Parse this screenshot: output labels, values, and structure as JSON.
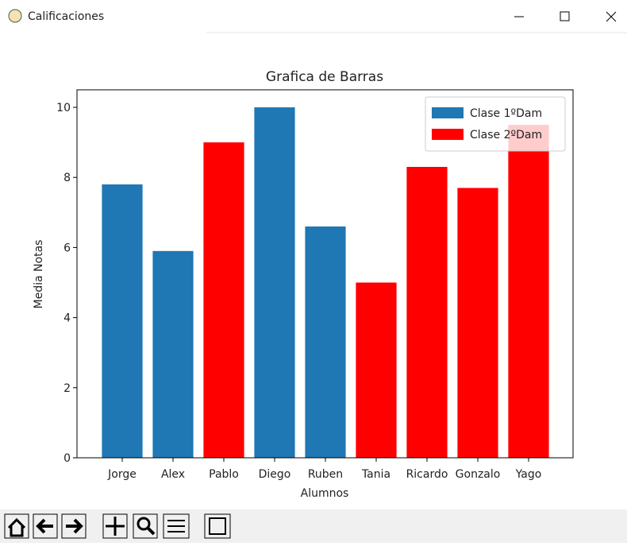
{
  "window": {
    "title": "Calificaciones"
  },
  "chart_data": {
    "type": "bar",
    "title": "Grafica de Barras",
    "x_label": "Alumnos",
    "y_label": "Media Notas",
    "categories": [
      "Jorge",
      "Alex",
      "Pablo",
      "Diego",
      "Ruben",
      "Tania",
      "Ricardo",
      "Gonzalo",
      "Yago"
    ],
    "series": [
      {
        "name": "Clase 1ºDam",
        "color": "#1f77b4",
        "values": [
          7.8,
          5.9,
          null,
          10.0,
          6.6,
          null,
          null,
          null,
          null
        ]
      },
      {
        "name": "Clase 2ºDam",
        "color": "#ff0000",
        "values": [
          null,
          null,
          9.0,
          null,
          null,
          5.0,
          8.3,
          7.7,
          9.5
        ]
      }
    ],
    "ylim": [
      0,
      10.5
    ],
    "yticks": [
      0,
      2,
      4,
      6,
      8,
      10
    ],
    "legend": "upper right"
  }
}
